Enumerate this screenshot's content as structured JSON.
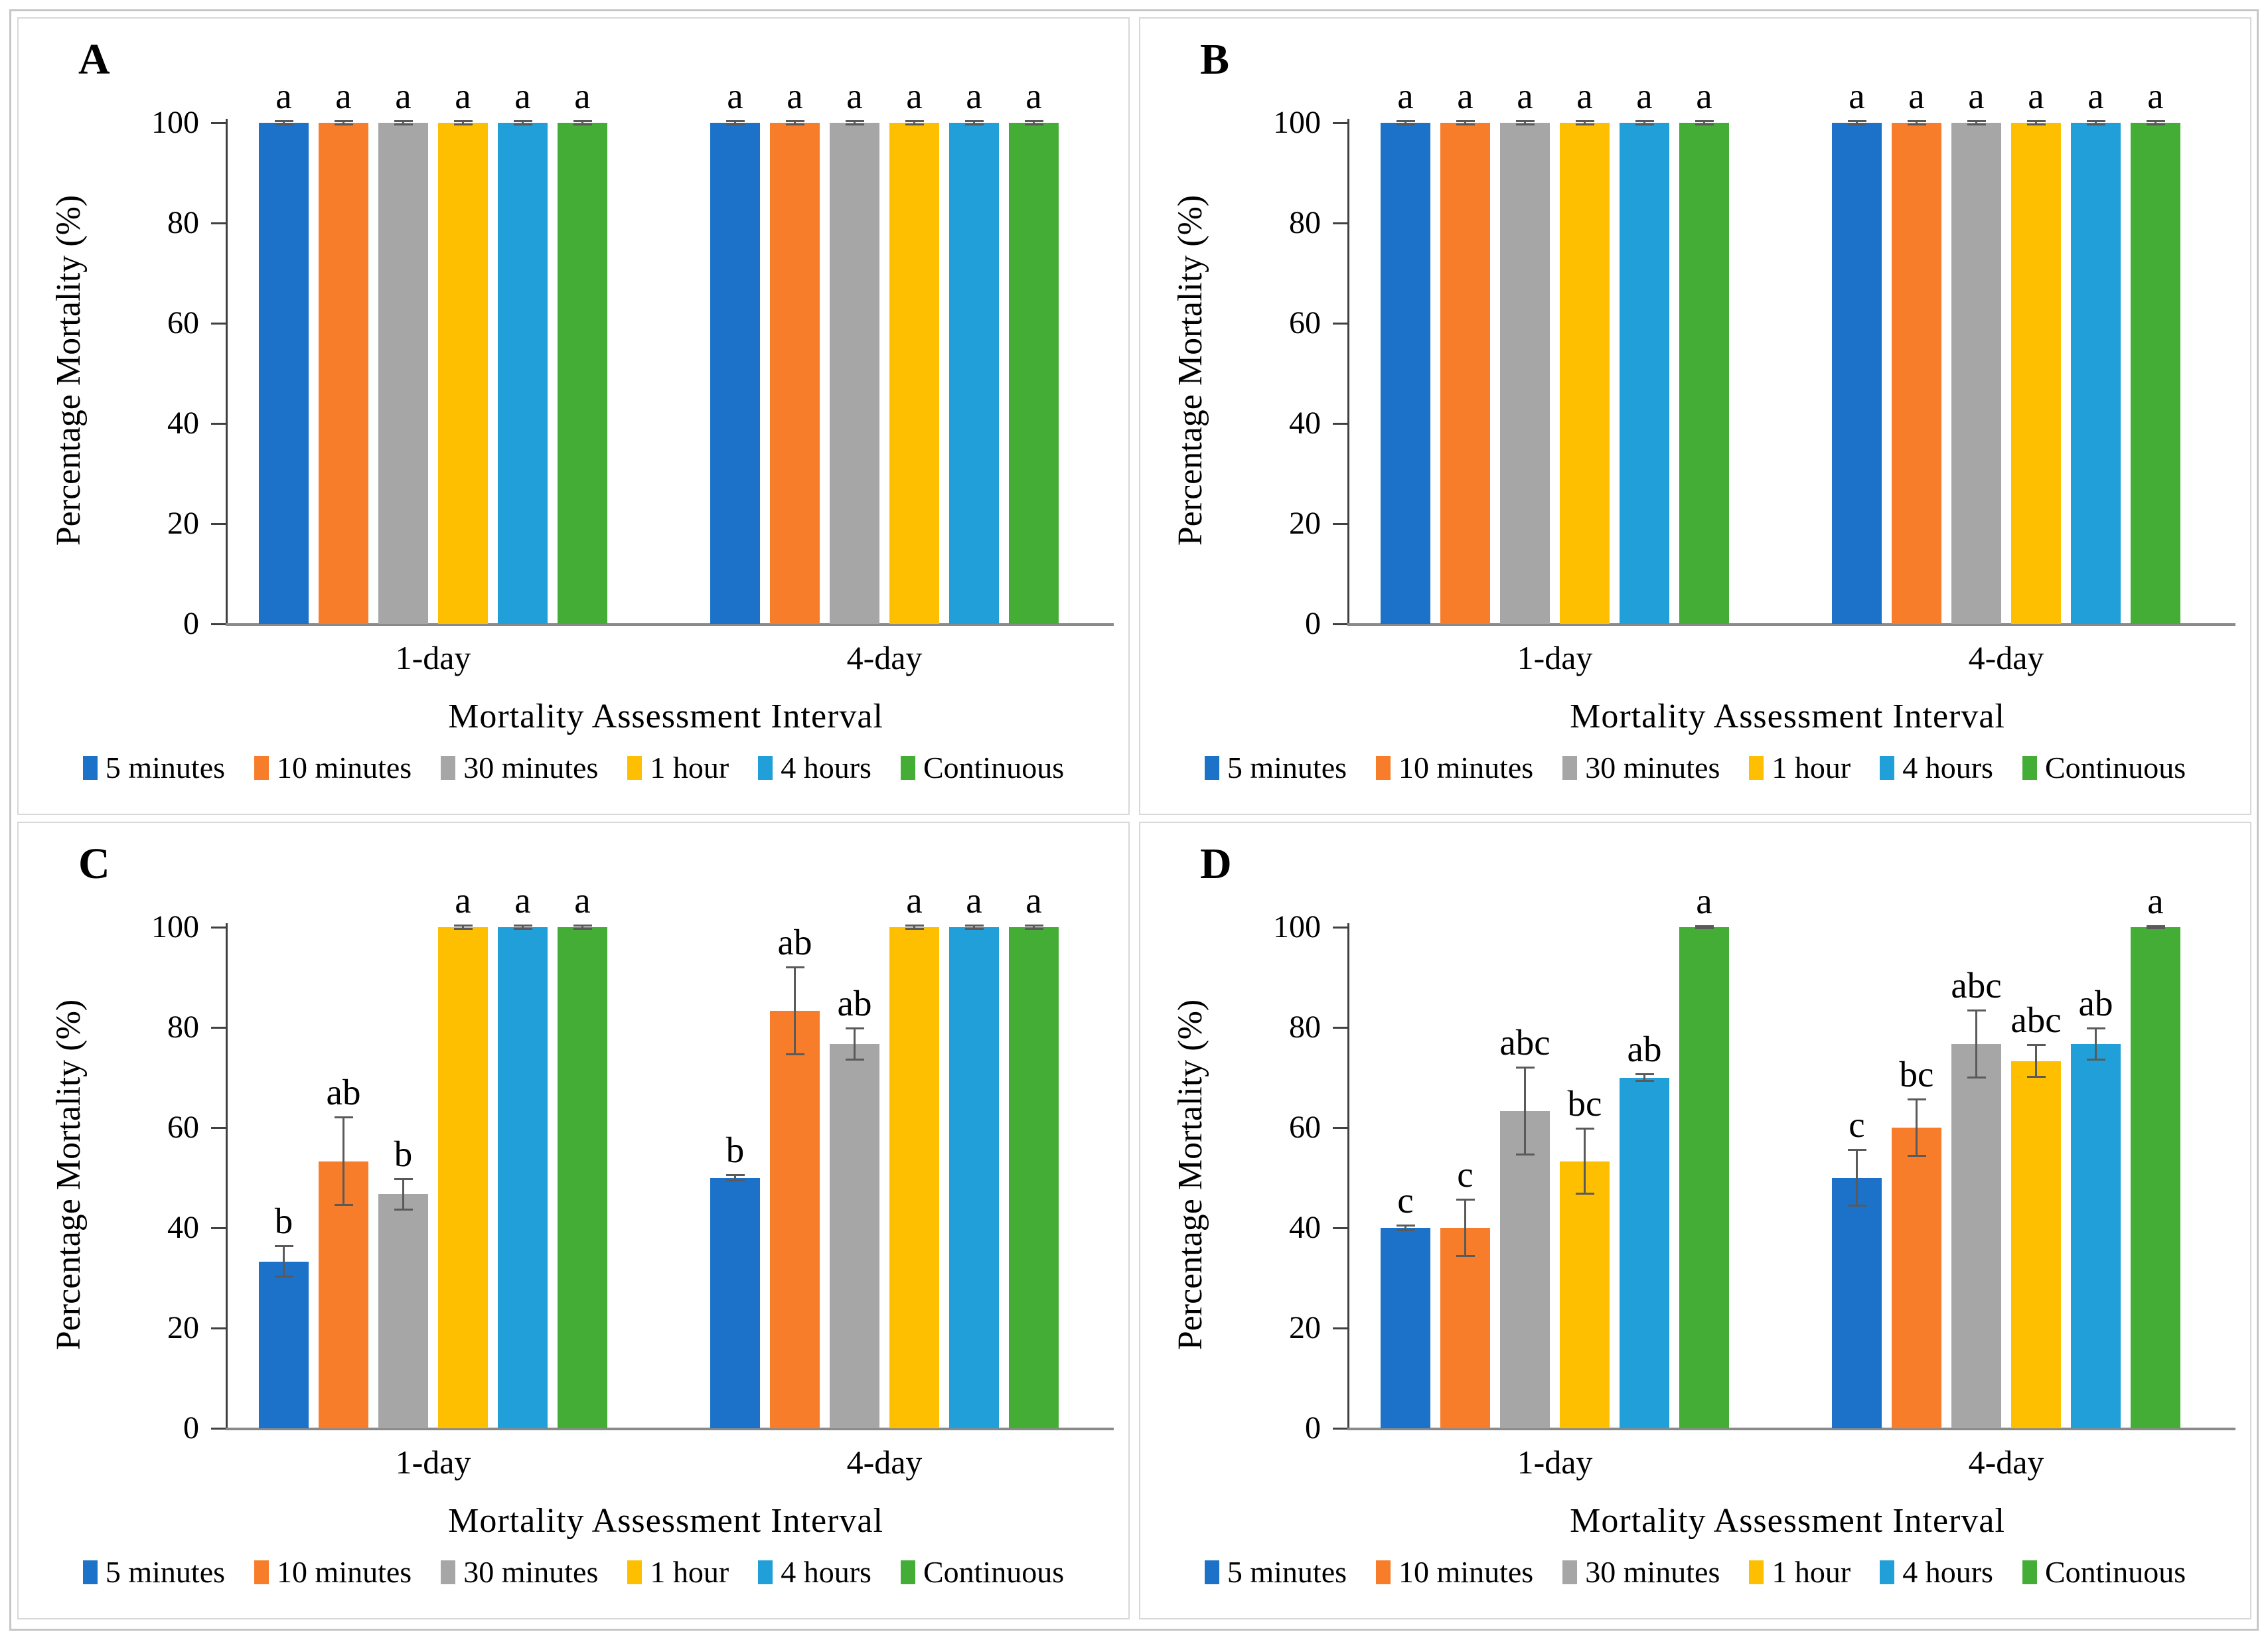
{
  "figure": {
    "ylabel": "Percentage Mortality (%)",
    "xlabel": "Mortality Assessment Interval",
    "categories": [
      "1-day",
      "4-day"
    ],
    "legend_labels": [
      "5 minutes",
      "10 minutes",
      "30 minutes",
      "1 hour",
      "4 hours",
      "Continuous"
    ]
  },
  "colors": {
    "blue": "#1B72C8",
    "orange": "#F87D2A",
    "gray": "#A6A6A6",
    "yellow": "#FDBF00",
    "light_blue": "#219FD9",
    "green": "#43AD35",
    "error_bar": "#5a5a5a",
    "axis": "#404040",
    "baseline": "#8a8a8a"
  },
  "chart_data": [
    {
      "panel": "A",
      "type": "bar",
      "title": "",
      "ylabel": "Percentage Mortality (%)",
      "xlabel": "Mortality Assessment Interval",
      "ylim": [
        0,
        100
      ],
      "yticks": [
        0,
        20,
        40,
        60,
        80,
        100
      ],
      "grid": false,
      "legend_position": "bottom",
      "categories": [
        "1-day",
        "4-day"
      ],
      "series": [
        {
          "name": "5 minutes",
          "color": "#1B72C8",
          "values": [
            100,
            100
          ],
          "errors": [
            0.5,
            0.5
          ],
          "letters": [
            "a",
            "a"
          ]
        },
        {
          "name": "10 minutes",
          "color": "#F87D2A",
          "values": [
            100,
            100
          ],
          "errors": [
            0.5,
            0.5
          ],
          "letters": [
            "a",
            "a"
          ]
        },
        {
          "name": "30 minutes",
          "color": "#A6A6A6",
          "values": [
            100,
            100
          ],
          "errors": [
            0.5,
            0.5
          ],
          "letters": [
            "a",
            "a"
          ]
        },
        {
          "name": "1 hour",
          "color": "#FDBF00",
          "values": [
            100,
            100
          ],
          "errors": [
            0.5,
            0.5
          ],
          "letters": [
            "a",
            "a"
          ]
        },
        {
          "name": "4 hours",
          "color": "#219FD9",
          "values": [
            100,
            100
          ],
          "errors": [
            0.5,
            0.5
          ],
          "letters": [
            "a",
            "a"
          ]
        },
        {
          "name": "Continuous",
          "color": "#43AD35",
          "values": [
            100,
            100
          ],
          "errors": [
            0.5,
            0.5
          ],
          "letters": [
            "a",
            "a"
          ]
        }
      ]
    },
    {
      "panel": "B",
      "type": "bar",
      "title": "",
      "ylabel": "Percentage Mortality (%)",
      "xlabel": "Mortality Assessment Interval",
      "ylim": [
        0,
        100
      ],
      "yticks": [
        0,
        20,
        40,
        60,
        80,
        100
      ],
      "grid": false,
      "legend_position": "bottom",
      "categories": [
        "1-day",
        "4-day"
      ],
      "series": [
        {
          "name": "5 minutes",
          "color": "#1B72C8",
          "values": [
            100,
            100
          ],
          "errors": [
            0.5,
            0.5
          ],
          "letters": [
            "a",
            "a"
          ]
        },
        {
          "name": "10 minutes",
          "color": "#F87D2A",
          "values": [
            100,
            100
          ],
          "errors": [
            0.5,
            0.5
          ],
          "letters": [
            "a",
            "a"
          ]
        },
        {
          "name": "30 minutes",
          "color": "#A6A6A6",
          "values": [
            100,
            100
          ],
          "errors": [
            0.5,
            0.5
          ],
          "letters": [
            "a",
            "a"
          ]
        },
        {
          "name": "1 hour",
          "color": "#FDBF00",
          "values": [
            100,
            100
          ],
          "errors": [
            0.5,
            0.5
          ],
          "letters": [
            "a",
            "a"
          ]
        },
        {
          "name": "4 hours",
          "color": "#219FD9",
          "values": [
            100,
            100
          ],
          "errors": [
            0.5,
            0.5
          ],
          "letters": [
            "a",
            "a"
          ]
        },
        {
          "name": "Continuous",
          "color": "#43AD35",
          "values": [
            100,
            100
          ],
          "errors": [
            0.5,
            0.5
          ],
          "letters": [
            "a",
            "a"
          ]
        }
      ]
    },
    {
      "panel": "C",
      "type": "bar",
      "title": "",
      "ylabel": "Percentage Mortality (%)",
      "xlabel": "Mortality Assessment Interval",
      "ylim": [
        0,
        100
      ],
      "yticks": [
        0,
        20,
        40,
        60,
        80,
        100
      ],
      "grid": false,
      "legend_position": "bottom",
      "categories": [
        "1-day",
        "4-day"
      ],
      "series": [
        {
          "name": "5 minutes",
          "color": "#1B72C8",
          "values": [
            33.3,
            50
          ],
          "errors": [
            3.3,
            0.7
          ],
          "letters": [
            "b",
            "b"
          ]
        },
        {
          "name": "10 minutes",
          "color": "#F87D2A",
          "values": [
            53.3,
            83.3
          ],
          "errors": [
            8.9,
            8.9
          ],
          "letters": [
            "ab",
            "ab"
          ]
        },
        {
          "name": "30 minutes",
          "color": "#A6A6A6",
          "values": [
            46.7,
            76.7
          ],
          "errors": [
            3.3,
            3.3
          ],
          "letters": [
            "b",
            "ab"
          ]
        },
        {
          "name": "1 hour",
          "color": "#FDBF00",
          "values": [
            100,
            100
          ],
          "errors": [
            0.5,
            0.5
          ],
          "letters": [
            "a",
            "a"
          ]
        },
        {
          "name": "4 hours",
          "color": "#219FD9",
          "values": [
            100,
            100
          ],
          "errors": [
            0.5,
            0.5
          ],
          "letters": [
            "a",
            "a"
          ]
        },
        {
          "name": "Continuous",
          "color": "#43AD35",
          "values": [
            100,
            100
          ],
          "errors": [
            0.5,
            0.5
          ],
          "letters": [
            "a",
            "a"
          ]
        }
      ]
    },
    {
      "panel": "D",
      "type": "bar",
      "title": "",
      "ylabel": "Percentage Mortality (%)",
      "xlabel": "Mortality Assessment Interval",
      "ylim": [
        0,
        100
      ],
      "yticks": [
        0,
        20,
        40,
        60,
        80,
        100
      ],
      "grid": false,
      "legend_position": "bottom",
      "categories": [
        "1-day",
        "4-day"
      ],
      "series": [
        {
          "name": "5 minutes",
          "color": "#1B72C8",
          "values": [
            40,
            50
          ],
          "errors": [
            0.7,
            5.8
          ],
          "letters": [
            "c",
            "c"
          ]
        },
        {
          "name": "10 minutes",
          "color": "#F87D2A",
          "values": [
            40,
            60
          ],
          "errors": [
            5.8,
            5.8
          ],
          "letters": [
            "c",
            "bc"
          ]
        },
        {
          "name": "30 minutes",
          "color": "#A6A6A6",
          "values": [
            63.3,
            76.7
          ],
          "errors": [
            8.9,
            6.9
          ],
          "letters": [
            "abc",
            "abc"
          ]
        },
        {
          "name": "1 hour",
          "color": "#FDBF00",
          "values": [
            53.3,
            73.3
          ],
          "errors": [
            6.7,
            3.4
          ],
          "letters": [
            "bc",
            "abc"
          ]
        },
        {
          "name": "4 hours",
          "color": "#219FD9",
          "values": [
            70,
            76.7
          ],
          "errors": [
            0.8,
            3.3
          ],
          "letters": [
            "ab",
            "ab"
          ]
        },
        {
          "name": "Continuous",
          "color": "#43AD35",
          "values": [
            100,
            100
          ],
          "errors": [
            0.4,
            0.4
          ],
          "letters": [
            "a",
            "a"
          ]
        }
      ]
    }
  ]
}
